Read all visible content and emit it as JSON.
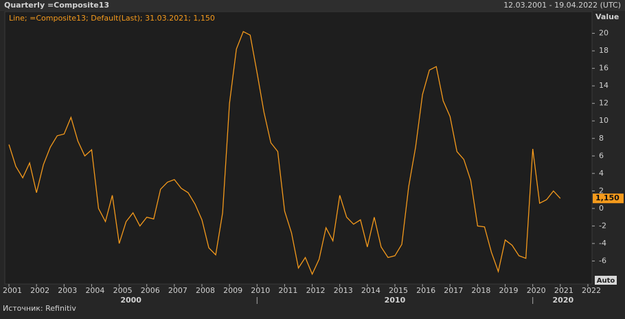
{
  "chart_data": {
    "type": "line",
    "title": "Quarterly =Composite13",
    "date_range": "12.03.2001 - 19.04.2022 (UTC)",
    "legend_text": "Line; =Composite13; Default(Last); 31.03.2021; 1,150",
    "y_axis_label": "Value",
    "button": "Auto",
    "source": "Источник: Refinitiv",
    "x": [
      2001,
      2001.25,
      2001.5,
      2001.75,
      2002,
      2002.25,
      2002.5,
      2002.75,
      2003,
      2003.25,
      2003.5,
      2003.75,
      2004,
      2004.25,
      2004.5,
      2004.75,
      2005,
      2005.25,
      2005.5,
      2005.75,
      2006,
      2006.25,
      2006.5,
      2006.75,
      2007,
      2007.25,
      2007.5,
      2007.75,
      2008,
      2008.25,
      2008.5,
      2008.75,
      2009,
      2009.25,
      2009.5,
      2009.75,
      2010,
      2010.25,
      2010.5,
      2010.75,
      2011,
      2011.25,
      2011.5,
      2011.75,
      2012,
      2012.25,
      2012.5,
      2012.75,
      2013,
      2013.25,
      2013.5,
      2013.75,
      2014,
      2014.25,
      2014.5,
      2014.75,
      2015,
      2015.25,
      2015.5,
      2015.75,
      2016,
      2016.25,
      2016.5,
      2016.75,
      2017,
      2017.25,
      2017.5,
      2017.75,
      2018,
      2018.25,
      2018.5,
      2018.75,
      2019,
      2019.25,
      2019.5,
      2019.75,
      2020,
      2020.25,
      2020.5,
      2020.75,
      2021
    ],
    "series": [
      {
        "name": "=Composite13",
        "color": "#f59a1c",
        "values": [
          7.3,
          4.8,
          3.5,
          5.2,
          1.8,
          5,
          7,
          8.3,
          8.5,
          10.4,
          7.7,
          6,
          6.7,
          0,
          -1.5,
          1.5,
          -4,
          -1.5,
          -0.5,
          -2,
          -1,
          -1.2,
          2.2,
          3,
          3.3,
          2.3,
          1.8,
          0.5,
          -1.3,
          -4.5,
          -5.3,
          -0.5,
          12,
          18.2,
          20.2,
          19.8,
          15.5,
          11,
          7.5,
          6.5,
          -0.3,
          -2.8,
          -6.8,
          -5.6,
          -7.5,
          -5.8,
          -2.2,
          -3.7,
          1.5,
          -1,
          -1.8,
          -1.3,
          -4.4,
          -1,
          -4.4,
          -5.6,
          -5.4,
          -4.1,
          2.5,
          7,
          13,
          15.8,
          16.2,
          12.3,
          10.5,
          6.5,
          5.6,
          3.2,
          -2,
          -2.1,
          -5,
          -7.2,
          -3.6,
          -4.2,
          -5.4,
          -5.7,
          6.8,
          0.6,
          1,
          2,
          1.15
        ]
      }
    ],
    "last_label": {
      "value": 1.15,
      "label": "1,150"
    },
    "xlim": [
      2000.85,
      2022.2
    ],
    "xticks": [
      2001,
      2002,
      2003,
      2004,
      2005,
      2006,
      2007,
      2008,
      2009,
      2010,
      2011,
      2012,
      2013,
      2014,
      2015,
      2016,
      2017,
      2018,
      2019,
      2020,
      2021,
      2022
    ],
    "decade_ticks": [
      {
        "value": 2000,
        "label": "2000"
      },
      {
        "value": 2010,
        "label": "2010"
      },
      {
        "value": 2020,
        "label": "2020"
      }
    ],
    "ylim": [
      -8.55,
      21.3
    ],
    "yticks": [
      -6,
      -4,
      -2,
      0,
      2,
      4,
      6,
      8,
      10,
      12,
      14,
      16,
      18,
      20
    ],
    "grid": false
  }
}
